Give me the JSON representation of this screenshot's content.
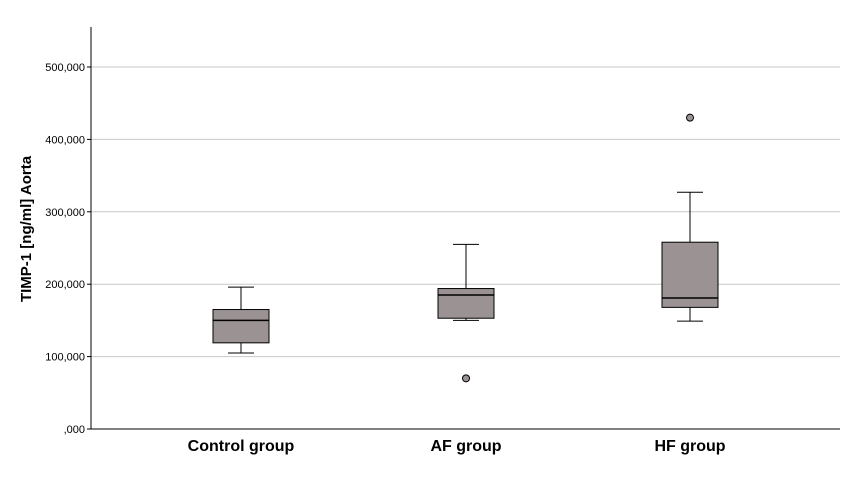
{
  "chart_data": {
    "type": "box",
    "ylabel": "TIMP-1 [ng/ml] Aorta",
    "xlabel": "",
    "ylim": [
      0,
      550000
    ],
    "yticks": [
      0,
      100000,
      200000,
      300000,
      400000,
      500000
    ],
    "ytick_labels": [
      ",000",
      "100,000",
      "200,000",
      "300,000",
      "400,000",
      "500,000"
    ],
    "grid": true,
    "box_color": "#9b9393",
    "categories": [
      "Control group",
      "AF group",
      "HF group"
    ],
    "boxes": [
      {
        "category": "Control group",
        "whisker_low": 105000,
        "q1": 119000,
        "median": 150000,
        "q3": 165000,
        "whisker_high": 196000,
        "outliers": []
      },
      {
        "category": "AF group",
        "whisker_low": 150000,
        "q1": 153000,
        "median": 185000,
        "q3": 194000,
        "whisker_high": 255000,
        "outliers": [
          70000
        ]
      },
      {
        "category": "HF group",
        "whisker_low": 149000,
        "q1": 168000,
        "median": 181000,
        "q3": 258000,
        "whisker_high": 327000,
        "outliers": [
          430000
        ]
      }
    ]
  }
}
